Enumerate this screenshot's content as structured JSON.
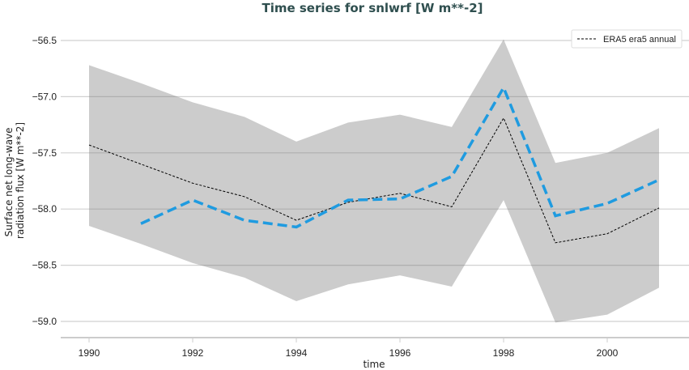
{
  "chart_data": {
    "type": "line",
    "title": "Time series for snlwrf [W m**-2]",
    "xlabel": "time",
    "ylabel": "Surface net long-wave radiation flux [W m**-2]",
    "ylabel_lines": [
      "Surface net long-wave",
      "radiation flux [W m**-2]"
    ],
    "xlim": [
      1989.45,
      2012.1
    ],
    "ylim": [
      -59.13,
      -56.5
    ],
    "xticks": [
      1990,
      1992,
      1994,
      1996,
      1998,
      2000
    ],
    "xtick_labels": [
      "1990",
      "1992",
      "1994",
      "1996",
      "1998",
      "2000"
    ],
    "yticks": [
      -56.5,
      -57.0,
      -57.5,
      -58.0,
      -58.5,
      -59.0
    ],
    "ytick_labels": [
      "−56.5",
      "−57.0",
      "−57.5",
      "−58.0",
      "−58.5",
      "−59.0"
    ],
    "grid": "horizontal",
    "legend_position": "top-right",
    "x": [
      1990,
      1991,
      1992,
      1993,
      1994,
      1995,
      1996,
      1997,
      1998,
      1999,
      2000,
      2001
    ],
    "band": {
      "color": "#cccccc",
      "upper": [
        -56.72,
        -56.88,
        -57.05,
        -57.18,
        -57.4,
        -57.23,
        -57.16,
        -57.27,
        -56.49,
        -57.59,
        -57.5,
        -57.28
      ],
      "lower": [
        -58.15,
        -58.31,
        -58.48,
        -58.61,
        -58.82,
        -58.67,
        -58.59,
        -58.69,
        -57.92,
        -59.01,
        -58.94,
        -58.7
      ]
    },
    "series": [
      {
        "name": "ERA5 era5 annual",
        "color": "#000000",
        "style": "dashed-thin",
        "values": [
          -57.43,
          -57.6,
          -57.77,
          -57.89,
          -58.1,
          -57.94,
          -57.86,
          -57.98,
          -57.19,
          -58.3,
          -58.22,
          -57.99
        ]
      },
      {
        "color": "#1f9be0",
        "style": "dashed-thick",
        "values": [
          null,
          -58.13,
          -57.92,
          -58.1,
          -58.16,
          -57.92,
          -57.91,
          -57.71,
          -56.92,
          -58.06,
          -57.95,
          -57.74
        ]
      }
    ]
  }
}
